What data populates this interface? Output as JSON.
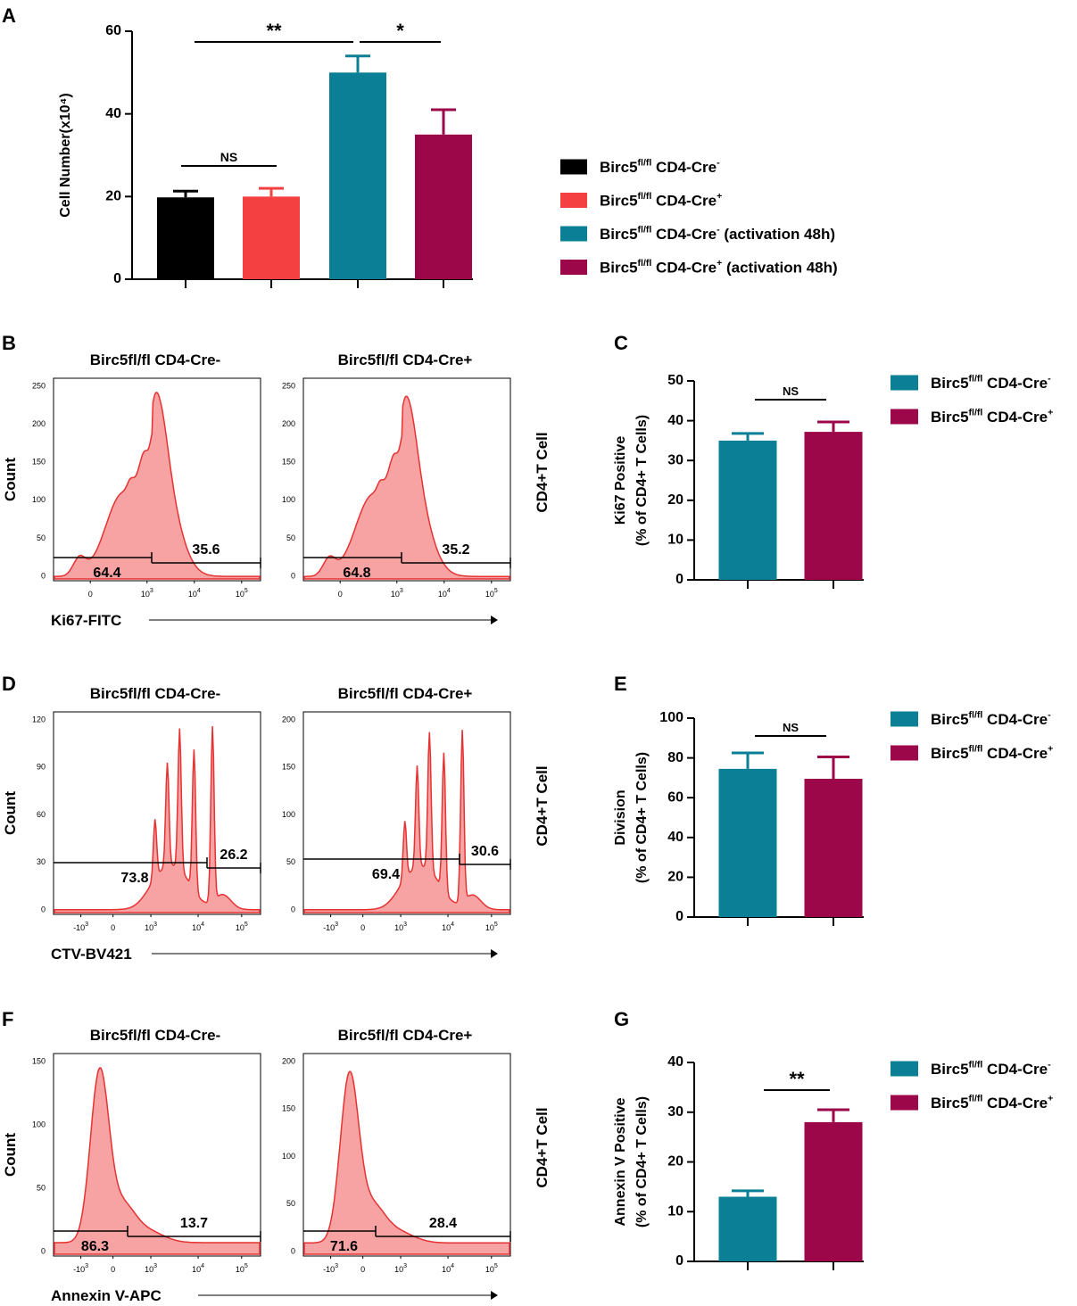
{
  "colors": {
    "black": "#000000",
    "red": "#f44040",
    "teal": "#0b7f96",
    "maroon": "#9c074a",
    "hist_fill": "#f7a3a3",
    "hist_line": "#e63232"
  },
  "panel_letters": [
    "A",
    "B",
    "C",
    "D",
    "E",
    "F",
    "G"
  ],
  "legend_main": [
    {
      "base": "Birc5",
      "sup": "fl/fl",
      "text": " CD4-Cre",
      "sup2": "-",
      "suffix": ""
    },
    {
      "base": "Birc5",
      "sup": "fl/fl",
      "text": " CD4-Cre",
      "sup2": "+",
      "suffix": ""
    },
    {
      "base": "Birc5",
      "sup": "fl/fl",
      "text": " CD4-Cre",
      "sup2": "-",
      "suffix": "  (activation 48h)"
    },
    {
      "base": "Birc5",
      "sup": "fl/fl",
      "text": " CD4-Cre",
      "sup2": "+",
      "suffix": "  (activation 48h)"
    }
  ],
  "legend_small": [
    {
      "base": "Birc5",
      "sup": "fl/fl",
      "text": " CD4-Cre",
      "sup2": "-"
    },
    {
      "base": "Birc5",
      "sup": "fl/fl",
      "text": " CD4-Cre",
      "sup2": "+"
    }
  ],
  "chart_data": [
    {
      "panel": "A",
      "type": "bar",
      "ylabel": "Cell Number(x10⁴)",
      "ylim": [
        0,
        60
      ],
      "yticks": [
        "0",
        "20",
        "40",
        "60"
      ],
      "categories": [
        "Birc5fl/fl CD4-Cre-",
        "Birc5fl/fl CD4-Cre+",
        "Birc5fl/fl CD4-Cre- (activation 48h)",
        "Birc5fl/fl CD4-Cre+ (activation 48h)"
      ],
      "values": [
        19.8,
        20.0,
        50.0,
        35.0
      ],
      "errors": [
        1.5,
        2.0,
        4.0,
        6.0
      ],
      "significance": [
        {
          "from": 0,
          "to": 1,
          "label": "NS"
        },
        {
          "from": 0,
          "to": 2,
          "label": "**"
        },
        {
          "from": 2,
          "to": 3,
          "label": "*"
        }
      ]
    },
    {
      "panel": "C",
      "type": "bar",
      "ylabel": "Ki67 Positive",
      "ylabel2": "(% of CD4+ T Cells)",
      "ylim": [
        0,
        50
      ],
      "yticks": [
        "0",
        "10",
        "20",
        "30",
        "40",
        "50"
      ],
      "categories": [
        "Birc5fl/fl CD4-Cre-",
        "Birc5fl/fl CD4-Cre+"
      ],
      "values": [
        35,
        37.2
      ],
      "errors": [
        1.8,
        2.5
      ],
      "significance": [
        {
          "from": 0,
          "to": 1,
          "label": "NS"
        }
      ]
    },
    {
      "panel": "E",
      "type": "bar",
      "ylabel": "Division",
      "ylabel2": "(% of CD4+ T Cells)",
      "ylim": [
        0,
        100
      ],
      "yticks": [
        "0",
        "20",
        "40",
        "60",
        "80",
        "100"
      ],
      "categories": [
        "Birc5fl/fl CD4-Cre-",
        "Birc5fl/fl CD4-Cre+"
      ],
      "values": [
        74.5,
        69.5
      ],
      "errors": [
        8.0,
        11.0
      ],
      "significance": [
        {
          "from": 0,
          "to": 1,
          "label": "NS"
        }
      ]
    },
    {
      "panel": "G",
      "type": "bar",
      "ylabel": "Annexin V Positive",
      "ylabel2": "(% of CD4+ T Cells)",
      "ylim": [
        0,
        40
      ],
      "yticks": [
        "0",
        "10",
        "20",
        "30",
        "40"
      ],
      "categories": [
        "Birc5fl/fl CD4-Cre-",
        "Birc5fl/fl CD4-Cre+"
      ],
      "values": [
        13.0,
        28.0
      ],
      "errors": [
        1.2,
        2.5
      ],
      "significance": [
        {
          "from": 0,
          "to": 1,
          "label": "**"
        }
      ]
    },
    {
      "panel": "B",
      "type": "histogram",
      "xlabel": "Ki67-FITC",
      "ylabel": "Count",
      "side_label": "CD4+T Cell",
      "plots": [
        {
          "title": "Birc5fl/fl CD4-Cre-",
          "yticks": [
            "0",
            "50",
            "100",
            "150",
            "200",
            "250"
          ],
          "ymax": 250,
          "xticks": [
            [
              "0",
              ""
            ],
            [
              "10",
              "3"
            ],
            [
              "10",
              "4"
            ],
            [
              "10",
              "5"
            ]
          ],
          "gate_left": "64.4",
          "gate_right": "35.6"
        },
        {
          "title": "Birc5fl/fl CD4-Cre+",
          "yticks": [
            "0",
            "50",
            "100",
            "150",
            "200",
            "250"
          ],
          "ymax": 250,
          "xticks": [
            [
              "0",
              ""
            ],
            [
              "10",
              "3"
            ],
            [
              "10",
              "4"
            ],
            [
              "10",
              "5"
            ]
          ],
          "gate_left": "64.8",
          "gate_right": "35.2"
        }
      ]
    },
    {
      "panel": "D",
      "type": "histogram",
      "xlabel": "CTV-BV421",
      "ylabel": "Count",
      "side_label": "CD4+T Cell",
      "plots": [
        {
          "title": "Birc5fl/fl CD4-Cre-",
          "yticks": [
            "0",
            "30",
            "60",
            "90",
            "120"
          ],
          "ymax": 120,
          "xticks": [
            [
              "-10",
              "3"
            ],
            [
              "0",
              ""
            ],
            [
              "10",
              "3"
            ],
            [
              "10",
              "4"
            ],
            [
              "10",
              "5"
            ]
          ],
          "gate_left": "73.8",
          "gate_right": "26.2"
        },
        {
          "title": "Birc5fl/fl CD4-Cre+",
          "yticks": [
            "0",
            "50",
            "100",
            "150",
            "200"
          ],
          "ymax": 200,
          "xticks": [
            [
              "-10",
              "3"
            ],
            [
              "0",
              ""
            ],
            [
              "10",
              "3"
            ],
            [
              "10",
              "4"
            ],
            [
              "10",
              "5"
            ]
          ],
          "gate_left": "69.4",
          "gate_right": "30.6"
        }
      ]
    },
    {
      "panel": "F",
      "type": "histogram",
      "xlabel": "Annexin V-APC",
      "ylabel": "Count",
      "side_label": "CD4+T Cell",
      "plots": [
        {
          "title": "Birc5fl/fl CD4-Cre-",
          "yticks": [
            "0",
            "50",
            "100",
            "150"
          ],
          "ymax": 150,
          "xticks": [
            [
              "-10",
              "3"
            ],
            [
              "0",
              ""
            ],
            [
              "10",
              "3"
            ],
            [
              "10",
              "4"
            ],
            [
              "10",
              "5"
            ]
          ],
          "gate_left": "86.3",
          "gate_right": "13.7"
        },
        {
          "title": "Birc5fl/fl CD4-Cre+",
          "yticks": [
            "0",
            "50",
            "100",
            "150",
            "200"
          ],
          "ymax": 200,
          "xticks": [
            [
              "-10",
              "3"
            ],
            [
              "0",
              ""
            ],
            [
              "10",
              "3"
            ],
            [
              "10",
              "4"
            ],
            [
              "10",
              "5"
            ]
          ],
          "gate_left": "71.6",
          "gate_right": "28.4"
        }
      ]
    }
  ]
}
